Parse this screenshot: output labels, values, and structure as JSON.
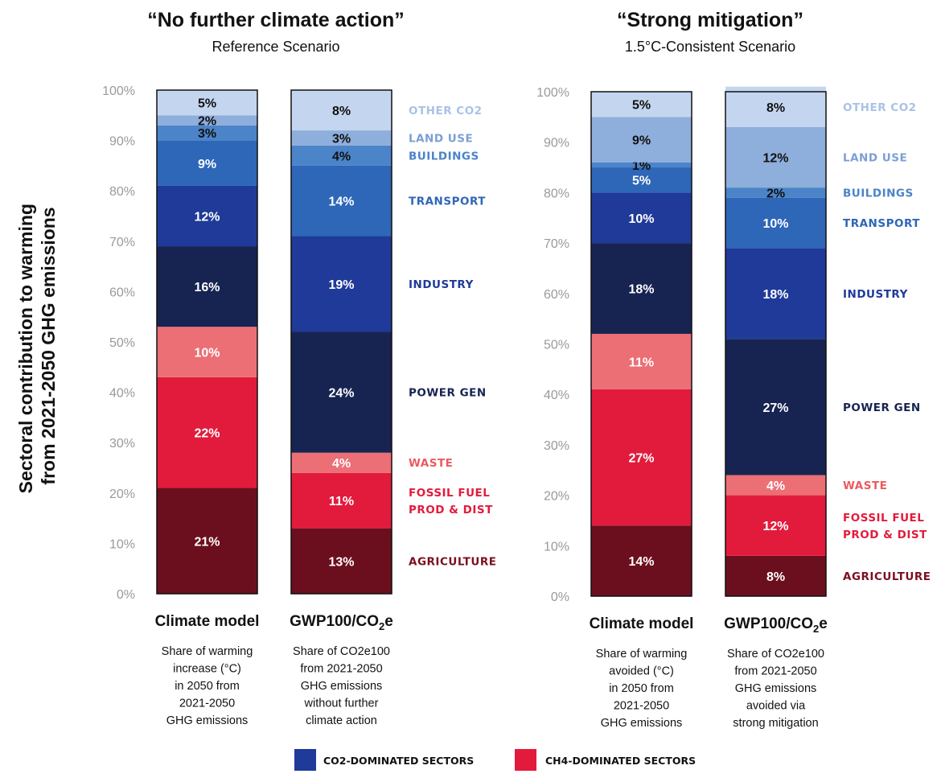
{
  "chart_data": [
    {
      "type": "bar",
      "stacked": true,
      "title": "“No further climate action”",
      "subtitle": "Reference Scenario",
      "ylabel": "Sectoral contribution to warming from 2021-2050 GHG emissions",
      "ylim": [
        0,
        100
      ],
      "yticks": [
        "0%",
        "10%",
        "20%",
        "30%",
        "40%",
        "50%",
        "60%",
        "70%",
        "80%",
        "90%",
        "100%"
      ],
      "categories": [
        {
          "title": "Climate model",
          "sub": "",
          "desc": [
            "Share of warming",
            "increase (°C)",
            "in 2050 from",
            "2021-2050",
            "GHG emissions"
          ]
        },
        {
          "title": "GWP100/CO",
          "sub": "2",
          "suffix": "e",
          "desc": [
            "Share of CO2e100",
            "from 2021-2050",
            "GHG emissions",
            "without further",
            "climate action"
          ]
        }
      ],
      "series": [
        {
          "name": "AGRICULTURE",
          "group": "CH4",
          "color": "#6b0f1e",
          "label_color": "#7a1020",
          "values": [
            21,
            13
          ],
          "labels": [
            "21%",
            "13%"
          ]
        },
        {
          "name": "FOSSIL FUEL PROD & DIST",
          "group": "CH4",
          "color": "#e21b3c",
          "label_color": "#e21b3c",
          "values": [
            22,
            11
          ],
          "labels": [
            "22%",
            "11%"
          ]
        },
        {
          "name": "WASTE",
          "group": "CH4",
          "color": "#ec6f75",
          "label_color": "#ec5a60",
          "values": [
            10,
            4
          ],
          "labels": [
            "10%",
            "4%"
          ]
        },
        {
          "name": "POWER GEN",
          "group": "CO2",
          "color": "#172452",
          "label_color": "#172452",
          "values": [
            16,
            24
          ],
          "labels": [
            "16%",
            "24%"
          ]
        },
        {
          "name": "INDUSTRY",
          "group": "CO2",
          "color": "#1f3a99",
          "label_color": "#1f3a99",
          "values": [
            12,
            19
          ],
          "labels": [
            "12%",
            "19%"
          ]
        },
        {
          "name": "TRANSPORT",
          "group": "CO2",
          "color": "#2e66b8",
          "label_color": "#2e66b8",
          "values": [
            9,
            14
          ],
          "labels": [
            "9%",
            "14%"
          ]
        },
        {
          "name": "BUILDINGS",
          "group": "CO2",
          "color": "#4b84c8",
          "label_color": "#4b84c8",
          "values": [
            3,
            4
          ],
          "labels": [
            "3%",
            "4%"
          ]
        },
        {
          "name": "LAND USE",
          "group": "CO2",
          "color": "#8eaedc",
          "label_color": "#7b9fd4",
          "values": [
            2,
            3
          ],
          "labels": [
            "2%",
            "3%"
          ]
        },
        {
          "name": "OTHER CO2",
          "group": "CO2",
          "color": "#c4d6ef",
          "label_color": "#a9c2e6",
          "values": [
            5,
            8
          ],
          "labels": [
            "5%",
            "8%"
          ]
        }
      ]
    },
    {
      "type": "bar",
      "stacked": true,
      "title": "“Strong mitigation”",
      "subtitle": "1.5°C-Consistent Scenario",
      "ylim": [
        0,
        100
      ],
      "yticks": [
        "0%",
        "10%",
        "20%",
        "30%",
        "40%",
        "50%",
        "60%",
        "70%",
        "80%",
        "90%",
        "100%"
      ],
      "categories": [
        {
          "title": "Climate model",
          "sub": "",
          "desc": [
            "Share of warming",
            "avoided (°C)",
            "in 2050 from",
            "2021-2050",
            "GHG emissions"
          ]
        },
        {
          "title": "GWP100/CO",
          "sub": "2",
          "suffix": "e",
          "desc": [
            "Share of CO2e100",
            "from 2021-2050",
            "GHG emissions",
            "avoided via",
            "strong mitigation"
          ]
        }
      ],
      "series": [
        {
          "name": "AGRICULTURE",
          "group": "CH4",
          "color": "#6b0f1e",
          "label_color": "#7a1020",
          "values": [
            14,
            8
          ],
          "labels": [
            "14%",
            "8%"
          ]
        },
        {
          "name": "FOSSIL FUEL PROD & DIST",
          "group": "CH4",
          "color": "#e21b3c",
          "label_color": "#e21b3c",
          "values": [
            27,
            12
          ],
          "labels": [
            "27%",
            "12%"
          ]
        },
        {
          "name": "WASTE",
          "group": "CH4",
          "color": "#ec6f75",
          "label_color": "#ec5a60",
          "values": [
            11,
            4
          ],
          "labels": [
            "11%",
            "4%"
          ]
        },
        {
          "name": "POWER GEN",
          "group": "CO2",
          "color": "#172452",
          "label_color": "#172452",
          "values": [
            18,
            27
          ],
          "labels": [
            "18%",
            "27%"
          ]
        },
        {
          "name": "INDUSTRY",
          "group": "CO2",
          "color": "#1f3a99",
          "label_color": "#1f3a99",
          "values": [
            10,
            18
          ],
          "labels": [
            "10%",
            "18%"
          ]
        },
        {
          "name": "TRANSPORT",
          "group": "CO2",
          "color": "#2e66b8",
          "label_color": "#2e66b8",
          "values": [
            5,
            10
          ],
          "labels": [
            "5%",
            "10%"
          ]
        },
        {
          "name": "BUILDINGS",
          "group": "CO2",
          "color": "#4b84c8",
          "label_color": "#4b84c8",
          "values": [
            1,
            2
          ],
          "labels": [
            "1%",
            "2%"
          ]
        },
        {
          "name": "LAND USE",
          "group": "CO2",
          "color": "#8eaedc",
          "label_color": "#7b9fd4",
          "values": [
            9,
            12
          ],
          "labels": [
            "9%",
            "12%"
          ]
        },
        {
          "name": "OTHER CO2",
          "group": "CO2",
          "color": "#c4d6ef",
          "label_color": "#a9c2e6",
          "values": [
            5,
            8
          ],
          "labels": [
            "5%",
            "8%"
          ]
        }
      ]
    }
  ],
  "legend": [
    {
      "label": "CO2-DOMINATED SECTORS",
      "color": "#1f3a99"
    },
    {
      "label": "CH4-DOMINATED SECTORS",
      "color": "#e21b3c"
    }
  ]
}
